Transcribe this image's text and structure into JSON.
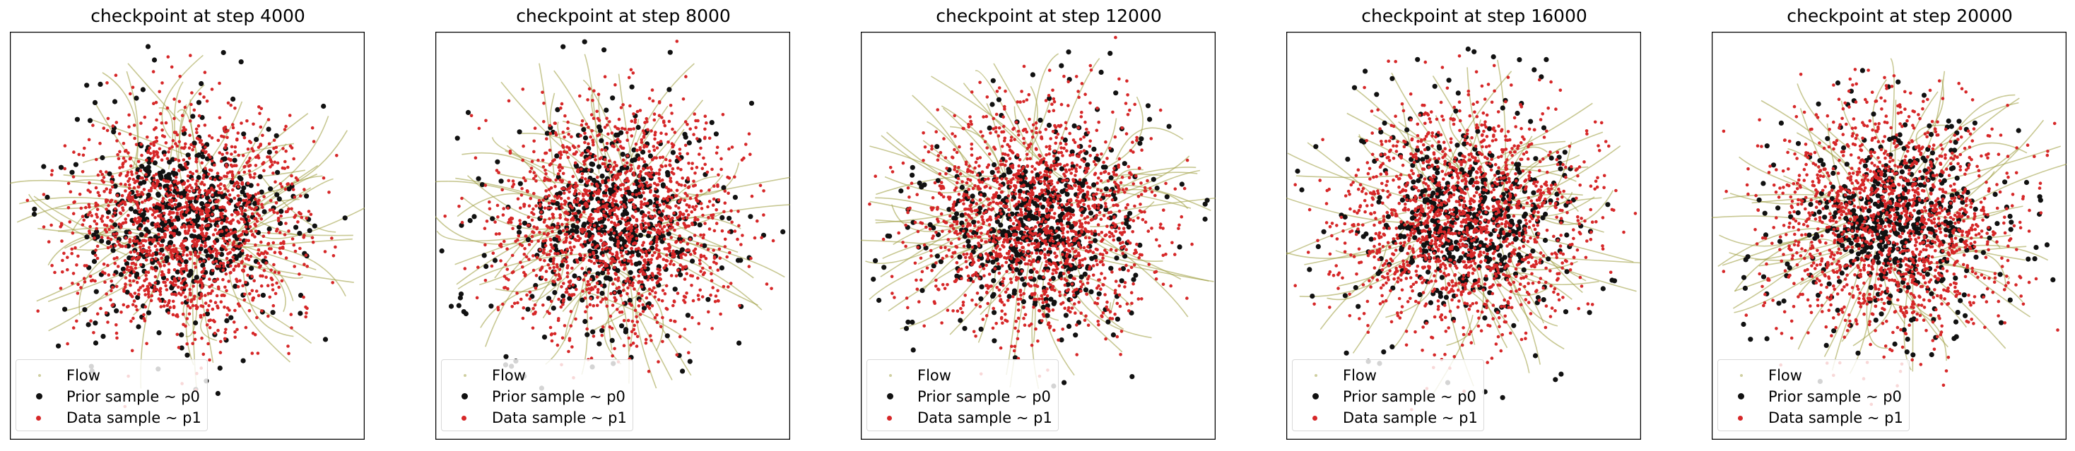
{
  "colors": {
    "flow": "#9a9a3a",
    "prior": "#111111",
    "data": "#d62728"
  },
  "legend": {
    "flow": "Flow",
    "prior": "Prior sample ~ p0",
    "data": "Data sample ~ p1"
  },
  "chart_data": [
    {
      "type": "scatter",
      "title": "checkpoint at step 4000",
      "grid": false,
      "legend_position": "lower-left",
      "series": [
        {
          "name": "Flow"
        },
        {
          "name": "Prior sample ~ p0"
        },
        {
          "name": "Data sample ~ p1"
        }
      ]
    },
    {
      "type": "scatter",
      "title": "checkpoint at step 8000",
      "grid": false,
      "legend_position": "lower-left",
      "series": [
        {
          "name": "Flow"
        },
        {
          "name": "Prior sample ~ p0"
        },
        {
          "name": "Data sample ~ p1"
        }
      ]
    },
    {
      "type": "scatter",
      "title": "checkpoint at step 12000",
      "grid": false,
      "legend_position": "lower-left",
      "series": [
        {
          "name": "Flow"
        },
        {
          "name": "Prior sample ~ p0"
        },
        {
          "name": "Data sample ~ p1"
        }
      ]
    },
    {
      "type": "scatter",
      "title": "checkpoint at step 16000",
      "grid": false,
      "legend_position": "lower-left",
      "series": [
        {
          "name": "Flow"
        },
        {
          "name": "Prior sample ~ p0"
        },
        {
          "name": "Data sample ~ p1"
        }
      ]
    },
    {
      "type": "scatter",
      "title": "checkpoint at step 20000",
      "grid": false,
      "legend_position": "lower-left",
      "series": [
        {
          "name": "Flow"
        },
        {
          "name": "Prior sample ~ p0"
        },
        {
          "name": "Data sample ~ p1"
        }
      ]
    }
  ]
}
